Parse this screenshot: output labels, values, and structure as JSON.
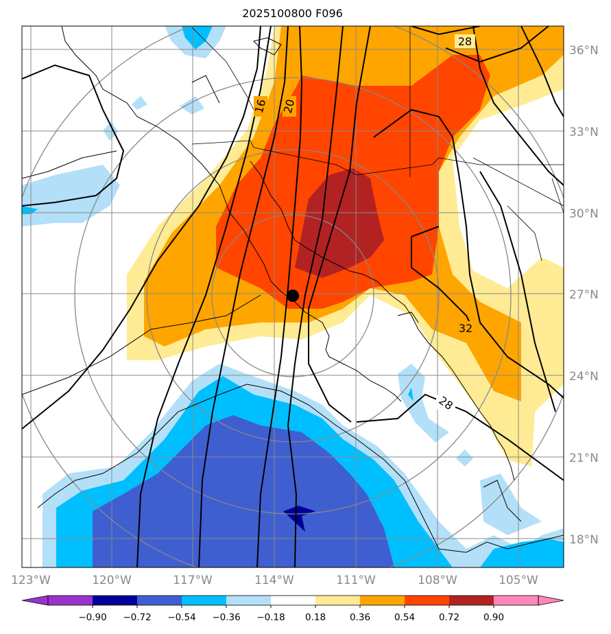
{
  "title": "2025100800 F096",
  "latitude_labels": [
    "36°N",
    "33°N",
    "30°N",
    "27°N",
    "24°N",
    "21°N",
    "18°N"
  ],
  "longitude_labels": [
    "123°W",
    "120°W",
    "117°W",
    "114°W",
    "111°W",
    "108°W",
    "105°W"
  ],
  "contour_labels": [
    "16",
    "20",
    "28",
    "28",
    "32"
  ],
  "colorbar": {
    "tick_labels": [
      "−0.90",
      "−0.72",
      "−0.54",
      "−0.36",
      "−0.18",
      "0.18",
      "0.36",
      "0.54",
      "0.72",
      "0.90"
    ],
    "colors": [
      "#9933cc",
      "#000099",
      "#3f5fd0",
      "#00bfff",
      "#b3e0f8",
      "#ffffff",
      "#ffeb94",
      "#ffa500",
      "#ff4500",
      "#b22222",
      "#ff88b8",
      "#ff88b8"
    ]
  },
  "center_marker": {
    "lat": 27.0,
    "lon": -113.3
  },
  "colors": {
    "grid": "#888888",
    "coast": "#000000",
    "contour": "#000000"
  }
}
